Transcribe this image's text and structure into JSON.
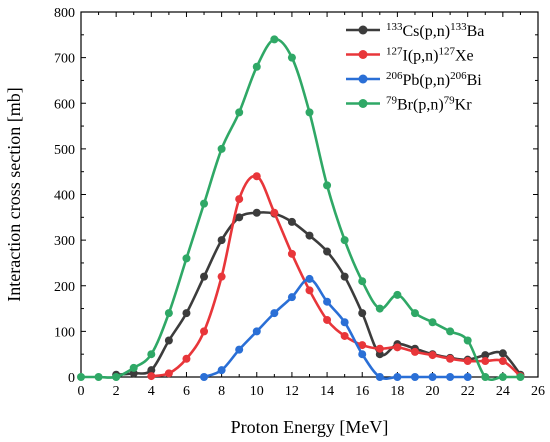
{
  "chart_data": {
    "type": "line",
    "title": "",
    "xlabel": "Proton Energy [MeV]",
    "ylabel": "Interaction cross section [mb]",
    "xlim": [
      0,
      26
    ],
    "ylim": [
      0,
      800
    ],
    "xticks": [
      "0",
      "2",
      "4",
      "6",
      "8",
      "10",
      "12",
      "14",
      "16",
      "18",
      "20",
      "22",
      "24",
      "26"
    ],
    "yticks": [
      "0",
      "100",
      "200",
      "300",
      "400",
      "500",
      "600",
      "700",
      "800"
    ],
    "grid": false,
    "legend_position": "top-right",
    "series": [
      {
        "name": "133Cs(p,n)133Ba",
        "legend_parts": [
          {
            "t": "133",
            "sup": true
          },
          {
            "t": "Cs(p,n)",
            "sup": false
          },
          {
            "t": "133",
            "sup": true
          },
          {
            "t": "Ba",
            "sup": false
          }
        ],
        "color": "#3c3c3c",
        "points": [
          [
            2,
            5
          ],
          [
            3,
            8
          ],
          [
            4,
            15
          ],
          [
            5,
            80
          ],
          [
            6,
            140
          ],
          [
            7,
            220
          ],
          [
            8,
            300
          ],
          [
            9,
            350
          ],
          [
            10,
            360
          ],
          [
            11,
            358
          ],
          [
            12,
            340
          ],
          [
            13,
            310
          ],
          [
            14,
            275
          ],
          [
            15,
            220
          ],
          [
            16,
            140
          ],
          [
            17,
            50
          ],
          [
            18,
            72
          ],
          [
            19,
            62
          ],
          [
            20,
            50
          ],
          [
            21,
            42
          ],
          [
            22,
            38
          ],
          [
            23,
            48
          ],
          [
            24,
            52
          ],
          [
            25,
            5
          ]
        ]
      },
      {
        "name": "127I(p,n)127Xe",
        "legend_parts": [
          {
            "t": "127",
            "sup": true
          },
          {
            "t": "I(p,n)",
            "sup": false
          },
          {
            "t": "127",
            "sup": true
          },
          {
            "t": "Xe",
            "sup": false
          }
        ],
        "color": "#e8363a",
        "points": [
          [
            4,
            2
          ],
          [
            5,
            8
          ],
          [
            6,
            40
          ],
          [
            7,
            100
          ],
          [
            8,
            220
          ],
          [
            9,
            390
          ],
          [
            10,
            440
          ],
          [
            11,
            360
          ],
          [
            12,
            270
          ],
          [
            13,
            190
          ],
          [
            14,
            125
          ],
          [
            15,
            90
          ],
          [
            16,
            70
          ],
          [
            17,
            62
          ],
          [
            18,
            65
          ],
          [
            19,
            55
          ],
          [
            20,
            48
          ],
          [
            21,
            40
          ],
          [
            22,
            35
          ],
          [
            23,
            35
          ],
          [
            24,
            35
          ],
          [
            25,
            2
          ]
        ]
      },
      {
        "name": "206Pb(p,n)206Bi",
        "legend_parts": [
          {
            "t": "206",
            "sup": true
          },
          {
            "t": "Pb(p,n)",
            "sup": false
          },
          {
            "t": "206",
            "sup": true
          },
          {
            "t": "Bi",
            "sup": false
          }
        ],
        "color": "#2a6fd6",
        "points": [
          [
            7,
            0
          ],
          [
            8,
            15
          ],
          [
            9,
            60
          ],
          [
            10,
            100
          ],
          [
            11,
            140
          ],
          [
            12,
            175
          ],
          [
            13,
            215
          ],
          [
            14,
            165
          ],
          [
            15,
            120
          ],
          [
            16,
            50
          ],
          [
            17,
            0
          ],
          [
            18,
            0
          ],
          [
            19,
            0
          ],
          [
            20,
            0
          ],
          [
            21,
            0
          ],
          [
            22,
            0
          ]
        ]
      },
      {
        "name": "79Br(p,n)79Kr",
        "legend_parts": [
          {
            "t": "79",
            "sup": true
          },
          {
            "t": "Br(p,n)",
            "sup": false
          },
          {
            "t": "79",
            "sup": true
          },
          {
            "t": "Kr",
            "sup": false
          }
        ],
        "color": "#2fa866",
        "points": [
          [
            0,
            0
          ],
          [
            1,
            0
          ],
          [
            2,
            0
          ],
          [
            3,
            20
          ],
          [
            4,
            50
          ],
          [
            5,
            140
          ],
          [
            6,
            260
          ],
          [
            7,
            380
          ],
          [
            8,
            500
          ],
          [
            9,
            580
          ],
          [
            10,
            680
          ],
          [
            11,
            740
          ],
          [
            12,
            700
          ],
          [
            13,
            580
          ],
          [
            14,
            420
          ],
          [
            15,
            300
          ],
          [
            16,
            210
          ],
          [
            17,
            150
          ],
          [
            18,
            180
          ],
          [
            19,
            140
          ],
          [
            20,
            120
          ],
          [
            21,
            100
          ],
          [
            22,
            80
          ],
          [
            23,
            0
          ],
          [
            24,
            0
          ],
          [
            25,
            0
          ]
        ]
      }
    ]
  }
}
